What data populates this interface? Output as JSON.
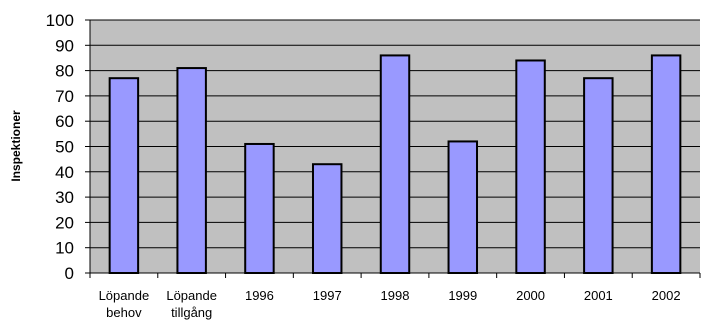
{
  "chart_data": {
    "type": "bar",
    "title": "",
    "xlabel": "",
    "ylabel": "Inspektioner",
    "categories": [
      [
        "Löpande",
        "behov"
      ],
      [
        "Löpande",
        "tillgång"
      ],
      [
        "1996"
      ],
      [
        "1997"
      ],
      [
        "1998"
      ],
      [
        "1999"
      ],
      [
        "2000"
      ],
      [
        "2001"
      ],
      [
        "2002"
      ]
    ],
    "values": [
      77,
      81,
      51,
      43,
      86,
      52,
      84,
      77,
      86
    ],
    "ylim": [
      0,
      100
    ],
    "ytick_step": 10,
    "grid": true,
    "legend": "none",
    "colors": {
      "plot_background": "#c0c0c0",
      "bar_fill": "#9999ff",
      "bar_stroke": "#000000",
      "gridline": "#000000"
    }
  }
}
